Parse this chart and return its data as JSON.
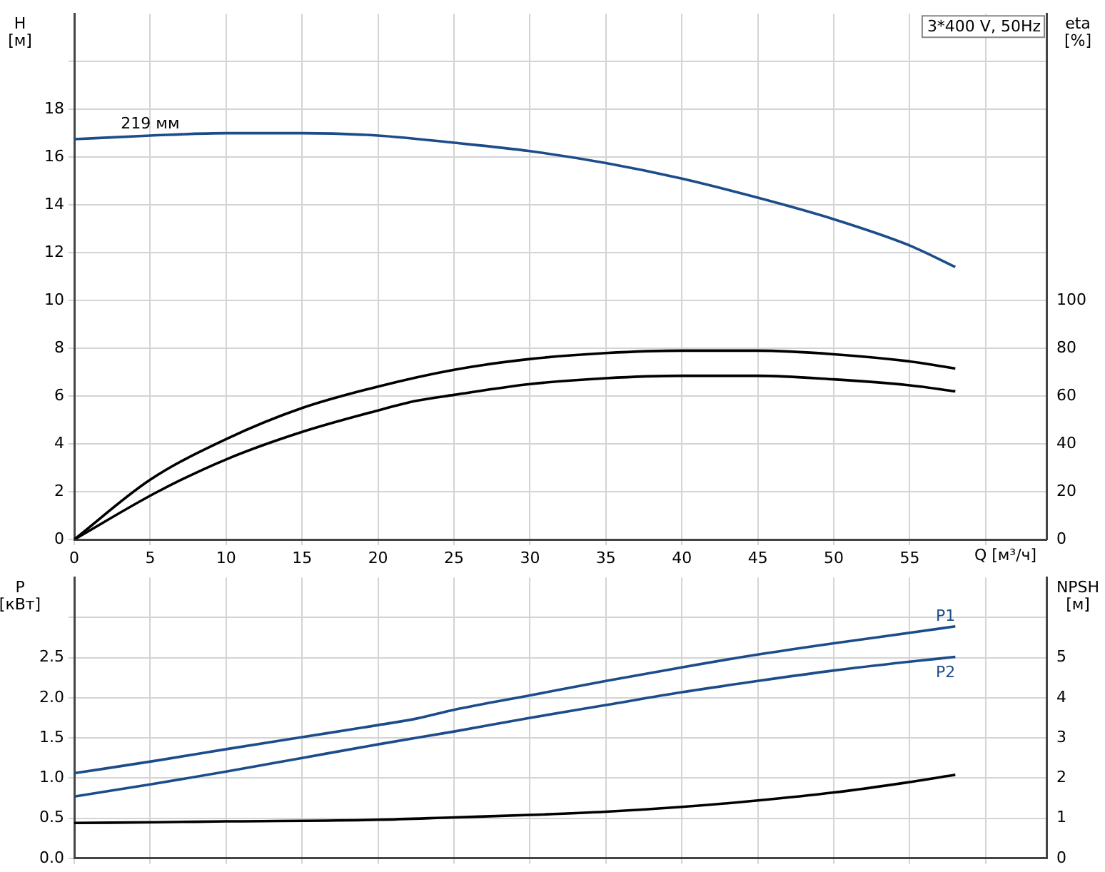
{
  "chart_data": [
    {
      "type": "line",
      "title": "3*400 V, 50Hz",
      "xlabel": "Q [м³/ч]",
      "ylabel": "H [м]",
      "y2label": "eta [%]",
      "xlim": [
        0,
        64
      ],
      "xticks": [
        0,
        5,
        10,
        15,
        20,
        25,
        30,
        35,
        40,
        45,
        50,
        55,
        {
          "value": 60,
          "label": null
        }
      ],
      "ylim": [
        0,
        22
      ],
      "yticks": [
        0,
        2,
        4,
        6,
        8,
        10,
        12,
        14,
        16,
        18,
        {
          "value": 20,
          "label": null
        }
      ],
      "y2lim": [
        0,
        220
      ],
      "y2ticks": [
        0,
        20,
        40,
        60,
        80,
        100
      ],
      "grid": true,
      "legend": false,
      "marker": "none",
      "line_style": "solid",
      "series": [
        {
          "name": "219 мм",
          "color": "#1c4c8a",
          "x": [
            0,
            5,
            10,
            15,
            20,
            25,
            30,
            35,
            40,
            45,
            50,
            55,
            58
          ],
          "values": [
            16.75,
            16.9,
            17.0,
            17.0,
            16.9,
            16.6,
            16.25,
            15.75,
            15.1,
            14.3,
            13.4,
            12.3,
            11.4
          ]
        },
        {
          "color": "#000000",
          "axis": "y2",
          "x": [
            0,
            5,
            10,
            15,
            20,
            25,
            30,
            35,
            40,
            45,
            50,
            55,
            58
          ],
          "values": [
            0,
            25,
            42,
            55,
            64,
            71,
            75.5,
            78,
            79,
            79,
            77.5,
            74.5,
            71.5
          ]
        },
        {
          "color": "#000000",
          "axis": "y2",
          "x": [
            0,
            5.5,
            10,
            15,
            20,
            22.5,
            25,
            30,
            35,
            40,
            45,
            50,
            55,
            58
          ],
          "values": [
            0,
            20,
            33.5,
            45,
            54,
            58,
            60.5,
            65,
            67.5,
            68.5,
            68.5,
            67,
            64.5,
            62
          ]
        }
      ]
    },
    {
      "type": "line",
      "ylabel": "P [кВт]",
      "y2label": "NPSH [м]",
      "xlim": [
        0,
        64
      ],
      "xticks": [
        0,
        5,
        10,
        15,
        20,
        25,
        30,
        35,
        40,
        45,
        50,
        55,
        60
      ],
      "ylim": [
        0,
        3.5
      ],
      "yticks": [
        {
          "value": 0,
          "label": "0.0"
        },
        {
          "value": 0.5,
          "label": "0.5"
        },
        {
          "value": 1,
          "label": "1.0"
        },
        {
          "value": 1.5,
          "label": "1.5"
        },
        {
          "value": 2,
          "label": "2.0"
        },
        {
          "value": 2.5,
          "label": "2.5"
        },
        {
          "value": 3,
          "label": null
        }
      ],
      "y2lim": [
        0,
        7
      ],
      "y2ticks": [
        0,
        1,
        2,
        3,
        4,
        5
      ],
      "tick_labels": "y",
      "grid": true,
      "legend": false,
      "marker": "none",
      "line_style": "solid",
      "series": [
        {
          "name": "P1",
          "color": "#1c4c8a",
          "x": [
            0,
            5.5,
            10,
            15,
            20,
            22.5,
            25,
            30,
            35,
            40,
            45,
            50,
            55,
            58
          ],
          "values": [
            1.06,
            1.22,
            1.36,
            1.51,
            1.66,
            1.74,
            1.85,
            2.03,
            2.21,
            2.38,
            2.54,
            2.68,
            2.81,
            2.89
          ]
        },
        {
          "name": "P2",
          "color": "#1c4c8a",
          "x": [
            0,
            5,
            10,
            15,
            20,
            25,
            30,
            35,
            40,
            45,
            50,
            55,
            58
          ],
          "values": [
            0.77,
            0.92,
            1.08,
            1.25,
            1.42,
            1.58,
            1.75,
            1.91,
            2.07,
            2.21,
            2.34,
            2.45,
            2.51
          ]
        },
        {
          "color": "#000000",
          "axis": "y2",
          "x": [
            0,
            5.5,
            10,
            20,
            25,
            30,
            35,
            40,
            45,
            50,
            55,
            58
          ],
          "values": [
            0.88,
            0.9,
            0.92,
            0.96,
            1.02,
            1.08,
            1.16,
            1.28,
            1.44,
            1.64,
            1.9,
            2.08
          ]
        }
      ]
    }
  ]
}
